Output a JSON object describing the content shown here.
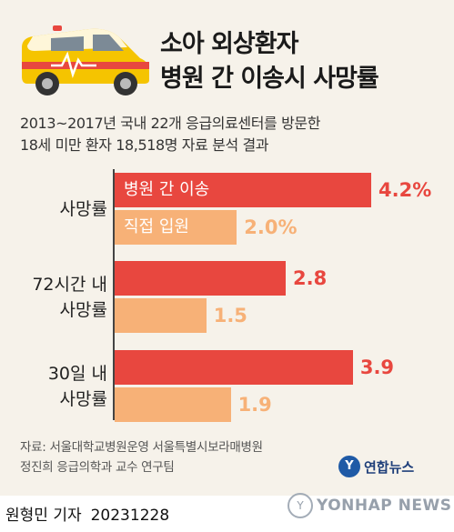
{
  "header": {
    "title_line1": "소아 외상환자",
    "title_line2": "병원 간 이송시 사망률"
  },
  "subtitle": {
    "line1": "2013~2017년 국내 22개 응급의료센터를 방문한",
    "line2": "18세 미만 환자 18,518명 자료 분석 결과"
  },
  "chart_data": {
    "type": "bar",
    "orientation": "horizontal",
    "unit": "%",
    "categories": [
      [
        "사망률"
      ],
      [
        "72시간 내",
        "사망률"
      ],
      [
        "30일 내",
        "사망률"
      ]
    ],
    "series": [
      {
        "name": "병원 간 이송",
        "color": "#e8473f",
        "values": [
          4.2,
          2.8,
          3.9
        ],
        "labels": [
          "4.2%",
          "2.8",
          "3.9"
        ]
      },
      {
        "name": "직접 입원",
        "color": "#f7b177",
        "values": [
          2.0,
          1.5,
          1.9
        ],
        "labels": [
          "2.0%",
          "1.5",
          "1.9"
        ]
      }
    ],
    "xlim": [
      0,
      4.2
    ],
    "grid": false,
    "legend": "inside-first-group-bars"
  },
  "source": {
    "line1": "자료: 서울대학교병원운영 서울특별시보라매병원",
    "line2": "정진희 응급의학과 교수 연구팀"
  },
  "brand": {
    "mark": "Y",
    "name": "연합뉴스"
  },
  "footer": {
    "reporter": "원형민 기자",
    "date": "20231228"
  },
  "watermark": {
    "mark": "Y",
    "text": "YONHAP NEWS"
  },
  "colors": {
    "background": "#f6f2ea",
    "accent_red": "#e8473f",
    "accent_orange": "#f7b177"
  },
  "icons": [
    "ambulance-icon"
  ]
}
